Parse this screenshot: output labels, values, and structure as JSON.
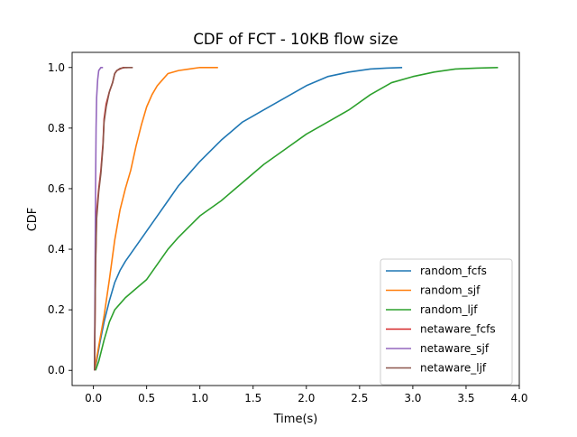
{
  "chart_data": {
    "type": "line",
    "title": "CDF of FCT - 10KB flow size",
    "xlabel": "Time(s)",
    "ylabel": "CDF",
    "xlim": [
      -0.2,
      4.0
    ],
    "ylim": [
      -0.05,
      1.05
    ],
    "xticks": [
      0.0,
      0.5,
      1.0,
      1.5,
      2.0,
      2.5,
      3.0,
      3.5,
      4.0
    ],
    "xtick_labels": [
      "0.0",
      "0.5",
      "1.0",
      "1.5",
      "2.0",
      "2.5",
      "3.0",
      "3.5",
      "4.0"
    ],
    "yticks": [
      0.0,
      0.2,
      0.4,
      0.6,
      0.8,
      1.0
    ],
    "ytick_labels": [
      "0.0",
      "0.2",
      "0.4",
      "0.6",
      "0.8",
      "1.0"
    ],
    "grid": false,
    "legend_position": "lower-right",
    "series": [
      {
        "name": "random_fcfs",
        "color": "#1f77b4",
        "x": [
          0.01,
          0.03,
          0.06,
          0.1,
          0.15,
          0.2,
          0.25,
          0.3,
          0.4,
          0.5,
          0.6,
          0.7,
          0.8,
          0.9,
          1.0,
          1.2,
          1.4,
          1.6,
          1.8,
          2.0,
          2.2,
          2.4,
          2.6,
          2.75,
          2.9
        ],
        "y": [
          0.0,
          0.03,
          0.09,
          0.16,
          0.23,
          0.29,
          0.33,
          0.36,
          0.41,
          0.46,
          0.51,
          0.56,
          0.61,
          0.65,
          0.69,
          0.76,
          0.82,
          0.86,
          0.9,
          0.94,
          0.97,
          0.985,
          0.995,
          0.998,
          1.0
        ]
      },
      {
        "name": "random_sjf",
        "color": "#ff7f0e",
        "x": [
          0.01,
          0.05,
          0.1,
          0.15,
          0.2,
          0.25,
          0.3,
          0.35,
          0.4,
          0.45,
          0.5,
          0.55,
          0.6,
          0.65,
          0.7,
          0.8,
          0.9,
          1.0,
          1.17
        ],
        "y": [
          0.0,
          0.08,
          0.18,
          0.3,
          0.43,
          0.53,
          0.6,
          0.66,
          0.74,
          0.81,
          0.87,
          0.91,
          0.94,
          0.96,
          0.98,
          0.99,
          0.995,
          1.0,
          1.0
        ]
      },
      {
        "name": "random_ljf",
        "color": "#2ca02c",
        "x": [
          0.02,
          0.05,
          0.1,
          0.15,
          0.2,
          0.25,
          0.3,
          0.4,
          0.5,
          0.6,
          0.7,
          0.8,
          1.0,
          1.2,
          1.4,
          1.6,
          1.8,
          2.0,
          2.2,
          2.4,
          2.6,
          2.8,
          3.0,
          3.2,
          3.4,
          3.6,
          3.8
        ],
        "y": [
          0.0,
          0.03,
          0.1,
          0.16,
          0.2,
          0.22,
          0.24,
          0.27,
          0.3,
          0.35,
          0.4,
          0.44,
          0.51,
          0.56,
          0.62,
          0.68,
          0.73,
          0.78,
          0.82,
          0.86,
          0.91,
          0.95,
          0.97,
          0.985,
          0.995,
          0.998,
          1.0
        ]
      },
      {
        "name": "netaware_fcfs",
        "color": "#d62728",
        "x": [
          0.01,
          0.02,
          0.03,
          0.05,
          0.07,
          0.09,
          0.1,
          0.12,
          0.15,
          0.18,
          0.2,
          0.22,
          0.25,
          0.28,
          0.3,
          0.32
        ],
        "y": [
          0.0,
          0.35,
          0.52,
          0.6,
          0.66,
          0.75,
          0.83,
          0.88,
          0.92,
          0.95,
          0.98,
          0.99,
          0.995,
          1.0,
          1.0,
          1.0
        ]
      },
      {
        "name": "netaware_sjf",
        "color": "#9467bd",
        "x": [
          0.01,
          0.015,
          0.02,
          0.025,
          0.03,
          0.04,
          0.05,
          0.07,
          0.09
        ],
        "y": [
          0.0,
          0.3,
          0.6,
          0.8,
          0.9,
          0.96,
          0.99,
          1.0,
          1.0
        ]
      },
      {
        "name": "netaware_ljf",
        "color": "#8c564b",
        "x": [
          0.01,
          0.02,
          0.03,
          0.05,
          0.07,
          0.09,
          0.1,
          0.12,
          0.15,
          0.18,
          0.2,
          0.22,
          0.25,
          0.3,
          0.37
        ],
        "y": [
          0.0,
          0.34,
          0.5,
          0.59,
          0.65,
          0.74,
          0.82,
          0.87,
          0.92,
          0.95,
          0.98,
          0.99,
          0.997,
          1.0,
          1.0
        ]
      }
    ]
  }
}
